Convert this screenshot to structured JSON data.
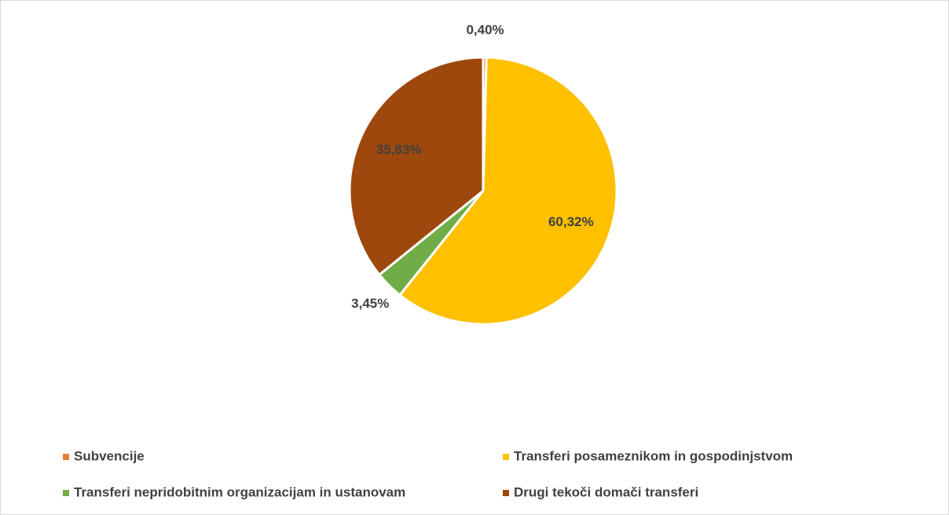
{
  "chart_data": {
    "type": "pie",
    "categories": [
      "Subvencije",
      "Transferi posameznikom in gospodinjstvom",
      "Transferi nepridobitnim organizacijam in ustanovam",
      "Drugi tekoči domači transferi"
    ],
    "values": [
      0.4,
      60.32,
      3.45,
      35.83
    ],
    "value_labels": [
      "0,40%",
      "60,32%",
      "3,45%",
      "35,83%"
    ],
    "colors": [
      "#ED7D31",
      "#FFC000",
      "#70AD47",
      "#9E480E"
    ],
    "legend": "bottom"
  }
}
